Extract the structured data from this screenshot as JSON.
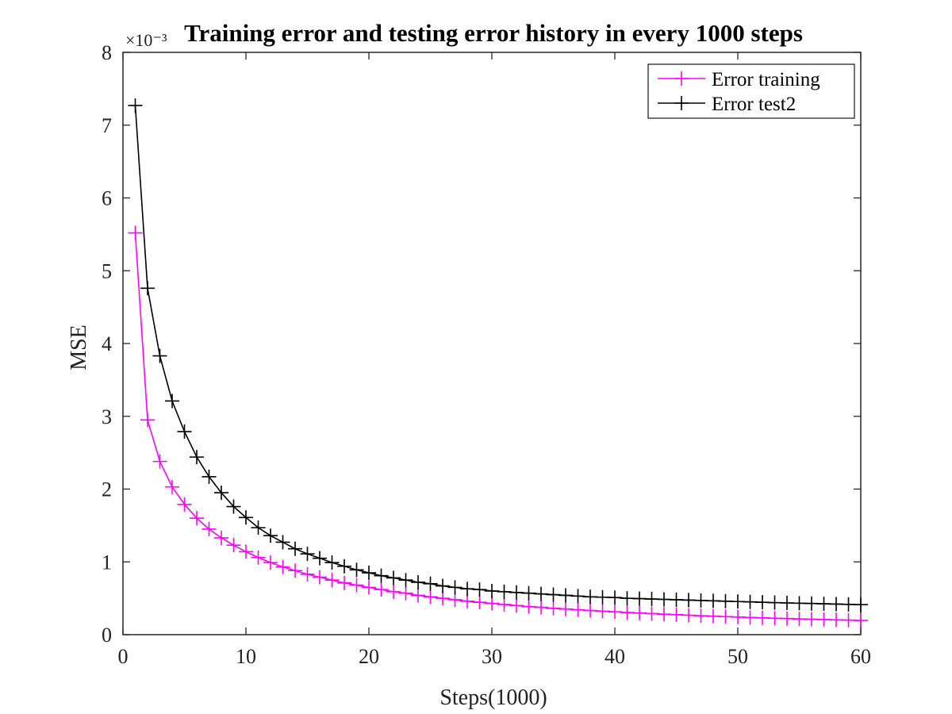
{
  "chart_data": {
    "type": "line",
    "title": "Training error and testing error history in every 1000 steps",
    "xlabel": "Steps(1000)",
    "ylabel": "MSE",
    "y_exponent_label": "×10⁻³",
    "y_scale": 0.001,
    "xlim": [
      0,
      60
    ],
    "ylim": [
      0,
      8
    ],
    "xticks": [
      0,
      10,
      20,
      30,
      40,
      50,
      60
    ],
    "yticks": [
      0,
      1,
      2,
      3,
      4,
      5,
      6,
      7,
      8
    ],
    "grid": false,
    "legend_position": "top-right",
    "marker": "+",
    "x": [
      1,
      2,
      3,
      4,
      5,
      6,
      7,
      8,
      9,
      10,
      11,
      12,
      13,
      14,
      15,
      16,
      17,
      18,
      19,
      20,
      21,
      22,
      23,
      24,
      25,
      26,
      27,
      28,
      29,
      30,
      31,
      32,
      33,
      34,
      35,
      36,
      37,
      38,
      39,
      40,
      41,
      42,
      43,
      44,
      45,
      46,
      47,
      48,
      49,
      50,
      51,
      52,
      53,
      54,
      55,
      56,
      57,
      58,
      59,
      60
    ],
    "series": [
      {
        "name": "Error training",
        "color": "#ff00ff",
        "values": [
          5.52,
          2.95,
          2.38,
          2.03,
          1.79,
          1.6,
          1.45,
          1.33,
          1.23,
          1.14,
          1.06,
          0.99,
          0.93,
          0.88,
          0.83,
          0.79,
          0.75,
          0.71,
          0.68,
          0.65,
          0.62,
          0.59,
          0.57,
          0.54,
          0.52,
          0.5,
          0.48,
          0.46,
          0.445,
          0.43,
          0.415,
          0.4,
          0.385,
          0.375,
          0.362,
          0.352,
          0.342,
          0.332,
          0.323,
          0.314,
          0.305,
          0.297,
          0.289,
          0.281,
          0.274,
          0.267,
          0.26,
          0.254,
          0.248,
          0.242,
          0.236,
          0.231,
          0.226,
          0.221,
          0.216,
          0.212,
          0.208,
          0.204,
          0.2,
          0.196
        ]
      },
      {
        "name": "Error test2",
        "color": "#000000",
        "values": [
          7.27,
          4.76,
          3.83,
          3.21,
          2.79,
          2.44,
          2.17,
          1.95,
          1.76,
          1.61,
          1.47,
          1.36,
          1.27,
          1.18,
          1.11,
          1.05,
          0.99,
          0.94,
          0.89,
          0.85,
          0.81,
          0.78,
          0.75,
          0.72,
          0.7,
          0.67,
          0.65,
          0.63,
          0.62,
          0.6,
          0.59,
          0.58,
          0.57,
          0.56,
          0.55,
          0.54,
          0.53,
          0.52,
          0.515,
          0.51,
          0.5,
          0.495,
          0.49,
          0.485,
          0.48,
          0.475,
          0.47,
          0.465,
          0.46,
          0.455,
          0.45,
          0.445,
          0.44,
          0.436,
          0.432,
          0.428,
          0.424,
          0.42,
          0.416,
          0.412
        ]
      }
    ]
  }
}
